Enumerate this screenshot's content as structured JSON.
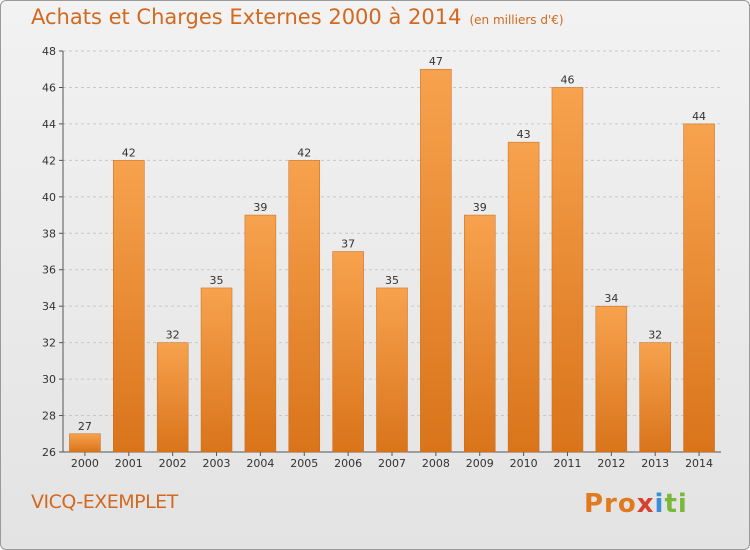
{
  "chart_data": {
    "type": "bar",
    "title": "Achats et Charges Externes 2000 à 2014",
    "subtitle": "(en milliers d'€)",
    "categories": [
      "2000",
      "2001",
      "2002",
      "2003",
      "2004",
      "2005",
      "2006",
      "2007",
      "2008",
      "2009",
      "2010",
      "2011",
      "2012",
      "2013",
      "2014"
    ],
    "values": [
      27,
      42,
      32,
      35,
      39,
      42,
      37,
      35,
      47,
      39,
      43,
      46,
      34,
      32,
      44
    ],
    "ylim": [
      26,
      48
    ],
    "yticks": [
      26,
      28,
      30,
      32,
      34,
      36,
      38,
      40,
      42,
      44,
      46,
      48
    ],
    "grid": true,
    "xlabel": "",
    "ylabel": "",
    "bar_color_light": "#f7a24e",
    "bar_color_dark": "#d9741a",
    "title_color": "#d2691e"
  },
  "footer": {
    "city": "VICQ-EXEMPLET",
    "logo_letters": [
      "Pro",
      "x",
      "i",
      "ti"
    ]
  }
}
